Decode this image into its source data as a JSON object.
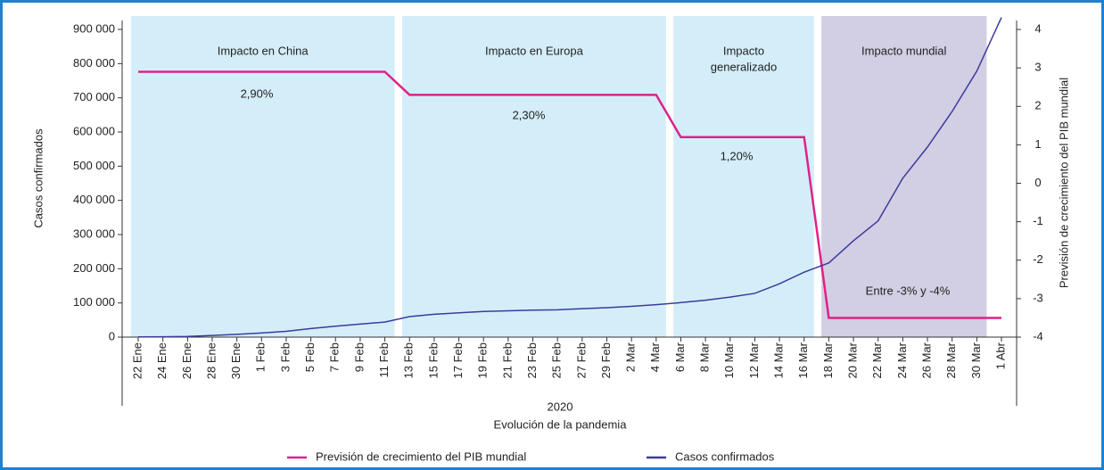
{
  "chart_data": {
    "type": "line",
    "axis_labels": {
      "y": "Casos confirmados",
      "y2": "Previsión de crecimiento del PIB mundial",
      "x_group": "2020",
      "x": "Evolución de la pandemia"
    },
    "categories": [
      "22 Ene",
      "24 Ene",
      "26 Ene",
      "28 Ene",
      "30 Ene",
      "1 Feb",
      "3 Feb",
      "5 Feb",
      "7 Feb",
      "9 Feb",
      "11 Feb",
      "13 Feb",
      "15 Feb",
      "17 Feb",
      "19 Feb",
      "21 Feb",
      "23 Feb",
      "25 Feb",
      "27 Feb",
      "29 Feb",
      "2 Mar",
      "4 Mar",
      "6 Mar",
      "8 Mar",
      "10 Mar",
      "12 Mar",
      "14 Mar",
      "16 Mar",
      "18 Mar",
      "20 Mar",
      "22 Mar",
      "24 Mar",
      "26 Mar",
      "28 Mar",
      "30 Mar",
      "1 Abr"
    ],
    "series": [
      {
        "name": "Previsión de crecimiento del PIB mundial",
        "color": "#e0218a",
        "axis": "y2",
        "values": [
          2.9,
          2.9,
          2.9,
          2.9,
          2.9,
          2.9,
          2.9,
          2.9,
          2.9,
          2.9,
          2.9,
          2.3,
          2.3,
          2.3,
          2.3,
          2.3,
          2.3,
          2.3,
          2.3,
          2.3,
          2.3,
          2.3,
          1.2,
          1.2,
          1.2,
          1.2,
          1.2,
          1.2,
          -3.5,
          -3.5,
          -3.5,
          -3.5,
          -3.5,
          -3.5,
          -3.5,
          -3.5
        ]
      },
      {
        "name": "Casos confirmados",
        "color": "#3b3b9c",
        "values": [
          500,
          1000,
          2000,
          5000,
          8000,
          12000,
          17000,
          25000,
          32000,
          38000,
          44000,
          60000,
          67000,
          71000,
          75000,
          77000,
          79000,
          80000,
          83000,
          86000,
          90000,
          95000,
          101000,
          108000,
          117000,
          128000,
          156000,
          190000,
          217000,
          282000,
          340000,
          465000,
          556000,
          660000,
          778000,
          935000
        ]
      }
    ],
    "regions": [
      {
        "label": [
          "Impacto en China"
        ],
        "from": "22 Ene",
        "to": "11 Feb",
        "color": "#d4eef9"
      },
      {
        "label": [
          "Impacto en Europa"
        ],
        "from": "13 Feb",
        "to": "4 Mar",
        "color": "#d4eef9"
      },
      {
        "label": [
          "Impacto",
          "generalizado"
        ],
        "from": "6 Mar",
        "to": "16 Mar",
        "color": "#d4eef9"
      },
      {
        "label": [
          "Impacto mundial"
        ],
        "from": "18 Mar",
        "to": "30 Mar",
        "color": "#d2cee3"
      }
    ],
    "annotations": [
      "2,90%",
      "2,30%",
      "1,20%",
      "Entre -3% y -4%"
    ],
    "ylim": [
      0,
      900000
    ],
    "yticks": [
      0,
      {
        "value": 100000,
        "label": "100 000"
      },
      {
        "value": 200000,
        "label": "200 000"
      },
      {
        "value": 300000,
        "label": "300 000"
      },
      {
        "value": 400000,
        "label": "400 000"
      },
      {
        "value": 500000,
        "label": "500 000"
      },
      {
        "value": 600000,
        "label": "600 000"
      },
      {
        "value": 700000,
        "label": "700 000"
      },
      {
        "value": 800000,
        "label": "800 000"
      },
      {
        "value": 900000,
        "label": "900 000"
      }
    ],
    "y2lim": [
      -4,
      4
    ],
    "y2ticks": [
      -4,
      -3,
      -2,
      -1,
      0,
      1,
      2,
      3,
      4
    ],
    "legend": "bottom"
  }
}
